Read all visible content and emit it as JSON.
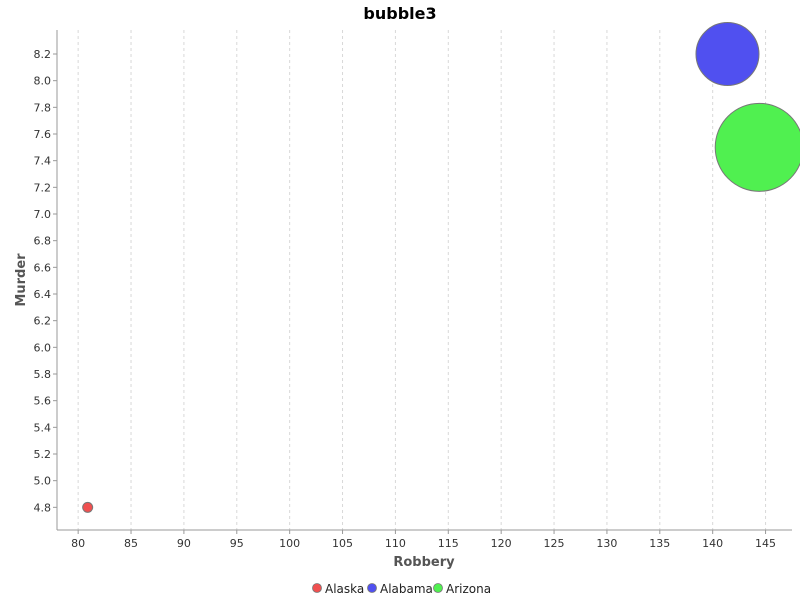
{
  "chart_data": {
    "type": "scatter",
    "subtype": "bubble",
    "title": "bubble3",
    "xlabel": "Robbery",
    "ylabel": "Murder",
    "xlim": [
      78,
      147.5
    ],
    "ylim": [
      4.63,
      8.38
    ],
    "x_ticks": [
      80,
      85,
      90,
      95,
      100,
      105,
      110,
      115,
      120,
      125,
      130,
      135,
      140,
      145
    ],
    "y_ticks": [
      4.8,
      5.0,
      5.2,
      5.4,
      5.6,
      5.8,
      6.0,
      6.2,
      6.4,
      6.6,
      6.8,
      7.0,
      7.2,
      7.4,
      7.6,
      7.8,
      8.0,
      8.2
    ],
    "grid": "vertical-dashed",
    "legend_position": "bottom",
    "series": [
      {
        "name": "Alaska",
        "color": "#f05050",
        "x": 80.9,
        "y": 4.8,
        "bubble_size": 10.0
      },
      {
        "name": "Alabama",
        "color": "#5050f0",
        "x": 141.4,
        "y": 8.2,
        "bubble_size": 63.0
      },
      {
        "name": "Arizona",
        "color": "#50f050",
        "x": 144.4,
        "y": 7.5,
        "bubble_size": 88.0
      }
    ]
  }
}
